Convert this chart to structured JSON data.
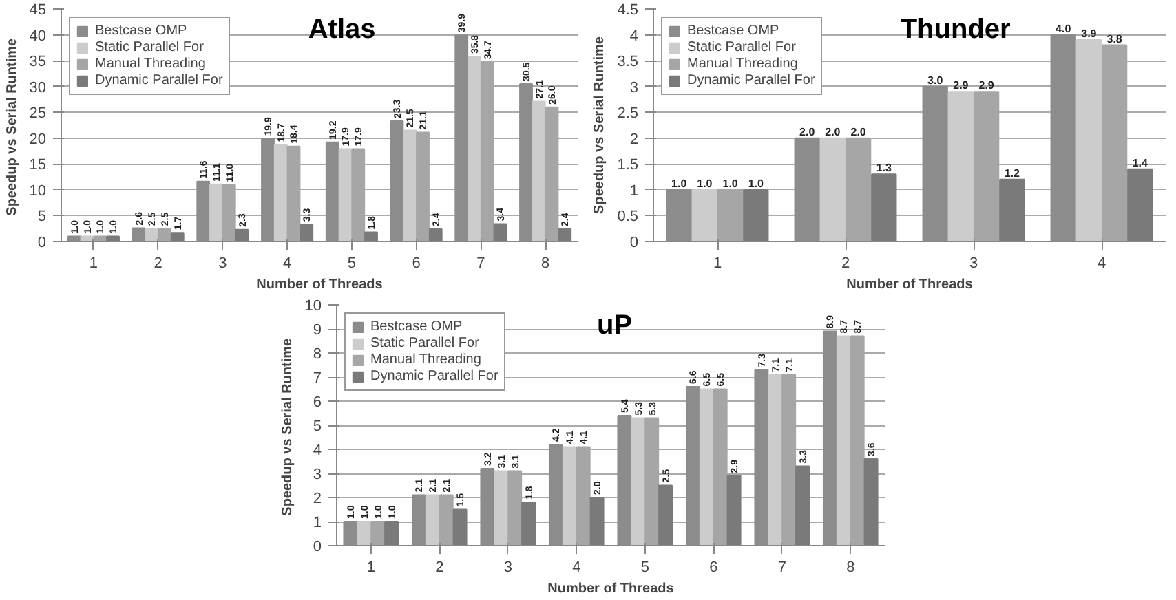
{
  "chart_data": [
    {
      "type": "bar",
      "title": "Atlas",
      "xlabel": "Number of Threads",
      "ylabel": "Speedup vs  Serial Runtime",
      "categories": [
        "1",
        "2",
        "3",
        "4",
        "5",
        "6",
        "7",
        "8"
      ],
      "ylim": [
        0,
        45
      ],
      "yticks": [
        0,
        5,
        10,
        15,
        20,
        25,
        30,
        35,
        40,
        45
      ],
      "grid": "y",
      "legend": "top left",
      "series": [
        {
          "name": "Bestcase OMP",
          "color": "#8c8c8c",
          "values": [
            1.0,
            2.6,
            11.6,
            19.9,
            19.2,
            23.3,
            39.9,
            30.5
          ],
          "value_labels": [
            "1.0",
            "2.6",
            "11.6",
            "19.9",
            "19.2",
            "23.3",
            "39.9",
            "30.5"
          ]
        },
        {
          "name": "Static Parallel For",
          "color": "#cccccc",
          "values": [
            1.0,
            2.5,
            11.1,
            18.7,
            17.9,
            21.5,
            35.8,
            27.1
          ],
          "value_labels": [
            "1.0",
            "2.5",
            "11.1",
            "18.7",
            "17.9",
            "21.5",
            "35.8",
            "27.1"
          ]
        },
        {
          "name": "Manual Threading",
          "color": "#a6a6a6",
          "values": [
            1.0,
            2.5,
            11.0,
            18.4,
            17.9,
            21.1,
            34.7,
            26.0
          ],
          "value_labels": [
            "1.0",
            "2.5",
            "11.0",
            "18.4",
            "17.9",
            "21.1",
            "34.7",
            "26.0"
          ]
        },
        {
          "name": "Dynamic Parallel For",
          "color": "#7a7a7a",
          "values": [
            1.0,
            1.7,
            2.3,
            3.3,
            1.8,
            2.4,
            3.4,
            2.4
          ],
          "value_labels": [
            "1.0",
            "1.7",
            "2.3",
            "3.3",
            "1.8",
            "2.4",
            "3.4",
            "2.4"
          ]
        }
      ]
    },
    {
      "type": "bar",
      "title": "Thunder",
      "xlabel": "Number of Threads",
      "ylabel": "Speedup vs Serial Runtime",
      "categories": [
        "1",
        "2",
        "3",
        "4"
      ],
      "ylim": [
        0,
        4.5
      ],
      "yticks": [
        0,
        0.5,
        1,
        1.5,
        2,
        2.5,
        3,
        3.5,
        4,
        4.5
      ],
      "grid": "y",
      "legend": "top left",
      "series": [
        {
          "name": "Bestcase OMP",
          "color": "#8c8c8c",
          "values": [
            1.0,
            2.0,
            3.0,
            4.0
          ],
          "value_labels": [
            "1.0",
            "2.0",
            "3.0",
            "4.0"
          ]
        },
        {
          "name": "Static Parallel For",
          "color": "#cccccc",
          "values": [
            1.0,
            2.0,
            2.9,
            3.9
          ],
          "value_labels": [
            "1.0",
            "2.0",
            "2.9",
            "3.9"
          ]
        },
        {
          "name": "Manual Threading",
          "color": "#a6a6a6",
          "values": [
            1.0,
            2.0,
            2.9,
            3.8
          ],
          "value_labels": [
            "1.0",
            "2.0",
            "2.9",
            "3.8"
          ]
        },
        {
          "name": "Dynamic Parallel For",
          "color": "#7a7a7a",
          "values": [
            1.0,
            1.3,
            1.2,
            1.4
          ],
          "value_labels": [
            "1.0",
            "1.3",
            "1.2",
            "1.4"
          ]
        }
      ]
    },
    {
      "type": "bar",
      "title": "uP",
      "xlabel": "Number of Threads",
      "ylabel": "Speedup vs  Serial Runtime",
      "categories": [
        "1",
        "2",
        "3",
        "4",
        "5",
        "6",
        "7",
        "8"
      ],
      "ylim": [
        0,
        10
      ],
      "yticks": [
        0,
        1,
        2,
        3,
        4,
        5,
        6,
        7,
        8,
        9,
        10
      ],
      "grid": "y",
      "legend": "top left",
      "series": [
        {
          "name": "Bestcase OMP",
          "color": "#8c8c8c",
          "values": [
            1.0,
            2.1,
            3.2,
            4.2,
            5.4,
            6.6,
            7.3,
            8.9
          ],
          "value_labels": [
            "1.0",
            "2.1",
            "3.2",
            "4.2",
            "5.4",
            "6.6",
            "7.3",
            "8.9"
          ]
        },
        {
          "name": "Static Parallel For",
          "color": "#cccccc",
          "values": [
            1.0,
            2.1,
            3.1,
            4.1,
            5.3,
            6.5,
            7.1,
            8.7
          ],
          "value_labels": [
            "1.0",
            "2.1",
            "3.1",
            "4.1",
            "5.3",
            "6.5",
            "7.1",
            "8.7"
          ]
        },
        {
          "name": "Manual Threading",
          "color": "#a6a6a6",
          "values": [
            1.0,
            2.1,
            3.1,
            4.1,
            5.3,
            6.5,
            7.1,
            8.7
          ],
          "value_labels": [
            "1.0",
            "2.1",
            "3.1",
            "4.1",
            "5.3",
            "6.5",
            "7.1",
            "8.7"
          ]
        },
        {
          "name": "Dynamic Parallel For",
          "color": "#7a7a7a",
          "values": [
            1.0,
            1.5,
            1.8,
            2.0,
            2.5,
            2.9,
            3.3,
            3.6
          ],
          "value_labels": [
            "1.0",
            "1.5",
            "1.8",
            "2.0",
            "2.5",
            "2.9",
            "3.3",
            "3.6"
          ]
        }
      ]
    }
  ]
}
